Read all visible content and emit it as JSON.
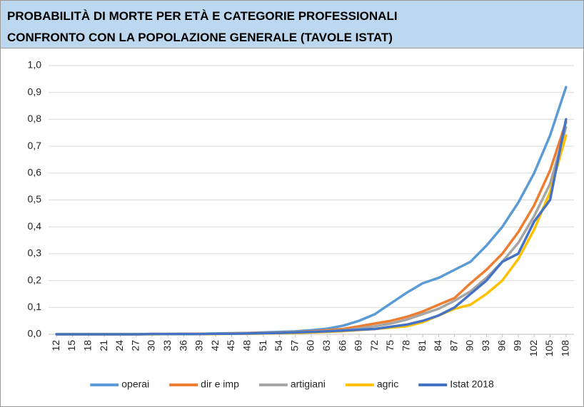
{
  "chart_data": {
    "type": "line",
    "title": "PROBABILITÀ DI MORTE PER ETÀ E CATEGORIE PROFESSIONALI",
    "subtitle": "CONFRONTO CON LA POPOLAZIONE GENERALE (TAVOLE ISTAT)",
    "categories": [
      12,
      15,
      18,
      21,
      24,
      27,
      30,
      33,
      36,
      39,
      42,
      45,
      48,
      51,
      54,
      57,
      60,
      63,
      66,
      69,
      72,
      75,
      78,
      81,
      84,
      87,
      90,
      93,
      96,
      99,
      102,
      105,
      108
    ],
    "ylim": [
      0,
      1
    ],
    "yticks": [
      {
        "value": 0,
        "label": "0,0"
      },
      {
        "value": 0.1,
        "label": "0,1"
      },
      {
        "value": 0.2,
        "label": "0,2"
      },
      {
        "value": 0.3,
        "label": "0,3"
      },
      {
        "value": 0.4,
        "label": "0,4"
      },
      {
        "value": 0.5,
        "label": "0,5"
      },
      {
        "value": 0.6,
        "label": "0,6"
      },
      {
        "value": 0.7,
        "label": "0,7"
      },
      {
        "value": 0.8,
        "label": "0,8"
      },
      {
        "value": 0.9,
        "label": "0,9"
      },
      {
        "value": 1,
        "label": "1,0"
      }
    ],
    "grid": true,
    "legend": "bottom",
    "series": [
      {
        "name": "operai",
        "color": "#5b9bd5",
        "values": [
          0.001,
          0.001,
          0.001,
          0.001,
          0.001,
          0.001,
          0.001,
          0.001,
          0.002,
          0.002,
          0.003,
          0.004,
          0.005,
          0.007,
          0.009,
          0.011,
          0.015,
          0.021,
          0.032,
          0.05,
          0.075,
          0.115,
          0.155,
          0.19,
          0.21,
          0.24,
          0.27,
          0.33,
          0.4,
          0.49,
          0.6,
          0.74,
          0.92
        ]
      },
      {
        "name": "dir e imp",
        "color": "#ed7d31",
        "values": [
          0,
          0,
          0,
          0,
          0,
          0,
          0.001,
          0.001,
          0.001,
          0.002,
          0.002,
          0.003,
          0.004,
          0.005,
          0.006,
          0.008,
          0.011,
          0.015,
          0.02,
          0.03,
          0.04,
          0.05,
          0.065,
          0.085,
          0.11,
          0.135,
          0.19,
          0.24,
          0.3,
          0.38,
          0.48,
          0.61,
          0.79
        ]
      },
      {
        "name": "artigiani",
        "color": "#a5a5a5",
        "values": [
          0,
          0,
          0,
          0,
          0,
          0,
          0.001,
          0.001,
          0.001,
          0.001,
          0.002,
          0.002,
          0.003,
          0.004,
          0.005,
          0.007,
          0.009,
          0.012,
          0.015,
          0.022,
          0.03,
          0.04,
          0.055,
          0.075,
          0.095,
          0.125,
          0.16,
          0.21,
          0.27,
          0.34,
          0.44,
          0.56,
          0.77
        ]
      },
      {
        "name": "agric",
        "color": "#ffc000",
        "values": [
          0,
          0,
          0,
          0,
          0,
          0,
          0,
          0.001,
          0.001,
          0.001,
          0.001,
          0.002,
          0.002,
          0.003,
          0.004,
          0.005,
          0.007,
          0.009,
          0.012,
          0.016,
          0.02,
          0.025,
          0.03,
          0.045,
          0.07,
          0.095,
          0.11,
          0.15,
          0.2,
          0.28,
          0.39,
          0.53,
          0.74
        ]
      },
      {
        "name": "Istat 2018",
        "color": "#4472c4",
        "values": [
          0,
          0,
          0,
          0,
          0,
          0,
          0.001,
          0.001,
          0.001,
          0.001,
          0.002,
          0.002,
          0.003,
          0.004,
          0.005,
          0.007,
          0.009,
          0.011,
          0.014,
          0.017,
          0.02,
          0.028,
          0.036,
          0.05,
          0.07,
          0.1,
          0.15,
          0.2,
          0.27,
          0.3,
          0.42,
          0.5,
          0.8
        ]
      }
    ]
  }
}
